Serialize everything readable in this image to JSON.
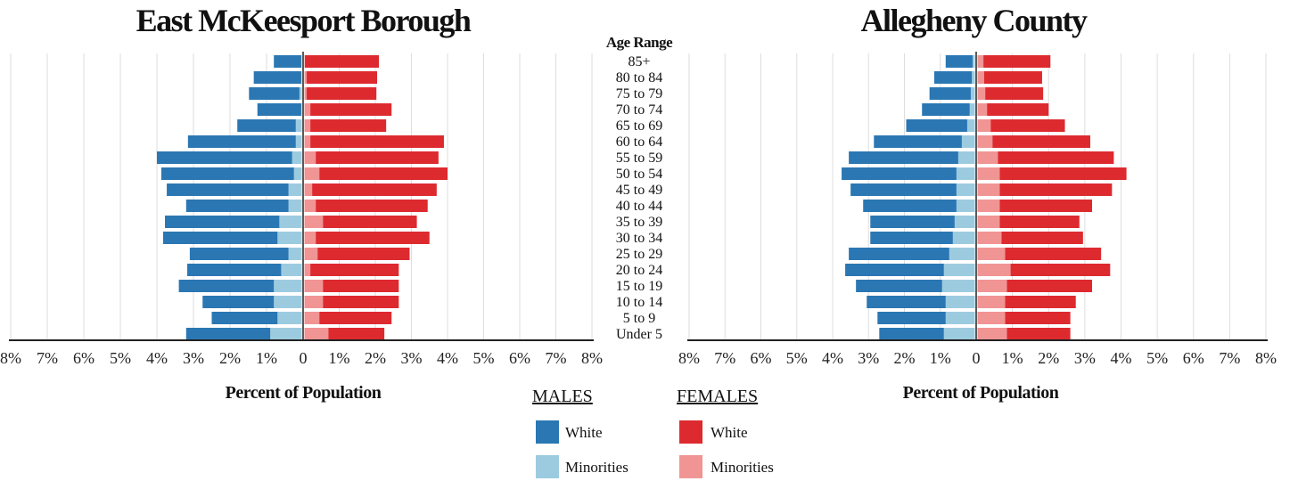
{
  "charts": [
    {
      "title": "East McKeesport Borough",
      "xlabel": "Percent of Population"
    },
    {
      "title": "Allegheny County",
      "xlabel": "Percent of Population"
    }
  ],
  "age_range_label": "Age Range",
  "legend": {
    "males_title": "MALES",
    "females_title": "FEMALES",
    "male_white": "White",
    "male_minorities": "Minorities",
    "female_white": "White",
    "female_minorities": "Minorities"
  },
  "colors": {
    "male_white": "#2a77b3",
    "male_minorities": "#9ccbe0",
    "female_white": "#dd2a2f",
    "female_minorities": "#f19494",
    "grid": "#dddddd",
    "axis": "#222222"
  },
  "chart_data": [
    {
      "type": "bar",
      "title": "East McKeesport Borough",
      "orientation": "horizontal-population-pyramid",
      "xlabel": "Percent of Population",
      "xlim": [
        -8,
        8
      ],
      "xticks": [
        "8%",
        "7%",
        "6%",
        "5%",
        "4%",
        "3%",
        "2%",
        "1%",
        "0",
        "1%",
        "2%",
        "3%",
        "4%",
        "5%",
        "6%",
        "7%",
        "8%"
      ],
      "categories": [
        "85+",
        "80 to 84",
        "75 to 79",
        "70 to 74",
        "65 to 69",
        "60 to 64",
        "55 to 59",
        "50 to 54",
        "45 to 49",
        "40 to 44",
        "35 to 39",
        "30 to 34",
        "25 to 29",
        "20 to 24",
        "15 to 19",
        "10 to 14",
        "5 to 9",
        "Under 5"
      ],
      "series": [
        {
          "name": "MALES White",
          "values": [
            0.75,
            1.3,
            1.38,
            1.2,
            1.6,
            2.95,
            3.7,
            3.63,
            3.33,
            2.8,
            3.13,
            3.13,
            2.7,
            2.57,
            2.6,
            1.95,
            1.8,
            2.3
          ]
        },
        {
          "name": "MALES Minorities",
          "values": [
            0.05,
            0.05,
            0.1,
            0.05,
            0.2,
            0.2,
            0.3,
            0.25,
            0.4,
            0.4,
            0.65,
            0.7,
            0.4,
            0.6,
            0.8,
            0.8,
            0.7,
            0.9
          ]
        },
        {
          "name": "FEMALES White",
          "values": [
            2.05,
            1.95,
            1.93,
            2.25,
            2.1,
            3.7,
            3.4,
            3.55,
            3.45,
            3.1,
            2.6,
            3.15,
            2.55,
            2.45,
            2.1,
            2.1,
            2.0,
            1.55
          ]
        },
        {
          "name": "FEMALES Minorities",
          "values": [
            0.05,
            0.1,
            0.1,
            0.2,
            0.2,
            0.2,
            0.35,
            0.45,
            0.25,
            0.35,
            0.55,
            0.35,
            0.4,
            0.2,
            0.55,
            0.55,
            0.45,
            0.7
          ]
        }
      ]
    },
    {
      "type": "bar",
      "title": "Allegheny County",
      "orientation": "horizontal-population-pyramid",
      "xlabel": "Percent of Population",
      "xlim": [
        -8,
        8
      ],
      "xticks": [
        "8%",
        "7%",
        "6%",
        "5%",
        "4%",
        "3%",
        "2%",
        "1%",
        "0",
        "1%",
        "2%",
        "3%",
        "4%",
        "5%",
        "6%",
        "7%",
        "8%"
      ],
      "categories": [
        "85+",
        "80 to 84",
        "75 to 79",
        "70 to 74",
        "65 to 69",
        "60 to 64",
        "55 to 59",
        "50 to 54",
        "45 to 49",
        "40 to 44",
        "35 to 39",
        "30 to 34",
        "25 to 29",
        "20 to 24",
        "15 to 19",
        "10 to 14",
        "5 to 9",
        "Under 5"
      ],
      "series": [
        {
          "name": "MALES White",
          "values": [
            0.75,
            1.05,
            1.15,
            1.33,
            1.7,
            2.45,
            3.05,
            3.2,
            2.95,
            2.6,
            2.35,
            2.3,
            2.8,
            2.75,
            2.4,
            2.2,
            1.9,
            1.8
          ]
        },
        {
          "name": "MALES Minorities",
          "values": [
            0.1,
            0.12,
            0.15,
            0.18,
            0.25,
            0.4,
            0.5,
            0.55,
            0.55,
            0.55,
            0.6,
            0.65,
            0.75,
            0.9,
            0.95,
            0.85,
            0.85,
            0.9
          ]
        },
        {
          "name": "FEMALES White",
          "values": [
            1.85,
            1.6,
            1.6,
            1.7,
            2.05,
            2.7,
            3.2,
            3.5,
            3.1,
            2.55,
            2.2,
            2.25,
            2.65,
            2.75,
            2.35,
            1.95,
            1.8,
            1.75
          ]
        },
        {
          "name": "FEMALES Minorities",
          "values": [
            0.2,
            0.22,
            0.25,
            0.3,
            0.4,
            0.45,
            0.6,
            0.65,
            0.65,
            0.65,
            0.65,
            0.7,
            0.8,
            0.95,
            0.85,
            0.8,
            0.8,
            0.85
          ]
        }
      ]
    }
  ]
}
